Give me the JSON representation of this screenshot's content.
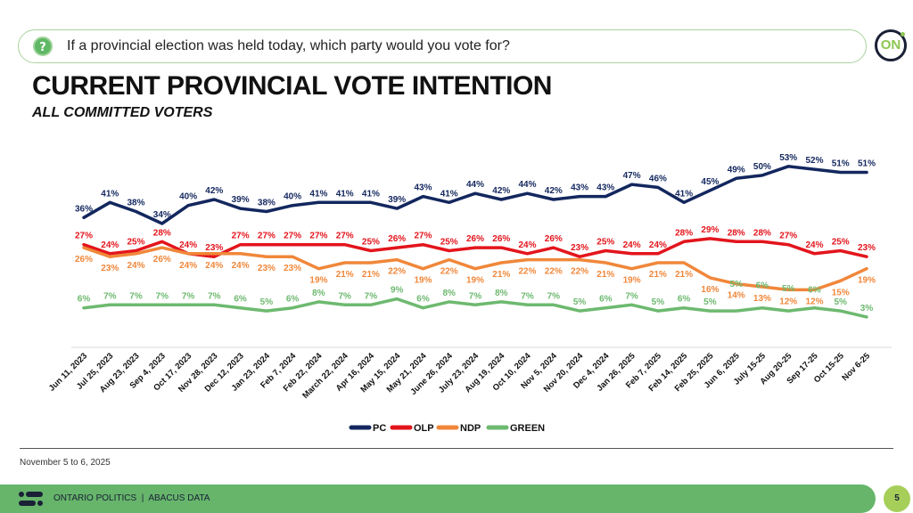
{
  "question": {
    "icon": "question-bubble-icon",
    "text": "If a provincial election was held today, which party would you vote for?"
  },
  "logo": {
    "text": "ON"
  },
  "header": {
    "title": "CURRENT PROVINCIAL VOTE INTENTION",
    "subtitle": "ALL COMMITTED VOTERS"
  },
  "footer": {
    "date_note": "November 5 to 6, 2025",
    "brand_text": "ONTARIO POLITICS  |  ABACUS DATA",
    "page_number": "5"
  },
  "chart_data": {
    "type": "line",
    "title": "CURRENT PROVINCIAL VOTE INTENTION",
    "subtitle": "ALL COMMITTED VOTERS",
    "xlabel": "",
    "ylabel": "",
    "ylim": [
      0,
      60
    ],
    "grid": false,
    "legend_position": "bottom-center",
    "value_suffix": "%",
    "categories": [
      "Jun 11, 2023",
      "Jul 25, 2023",
      "Aug 23, 2023",
      "Sep 4, 2023",
      "Oct 17, 2023",
      "Nov 28, 2023",
      "Dec 12, 2023",
      "Jan 23, 2024",
      "Feb 7, 2024",
      "Feb 22, 2024",
      "March 22, 2024",
      "Apr 16, 2024",
      "May 15, 2024",
      "May 21, 2024",
      "June 26, 2024",
      "July 23, 2024",
      "Aug 19, 2024",
      "Oct 10, 2024",
      "Nov 5, 2024",
      "Nov 20, 2024",
      "Dec 4, 2024",
      "Jan 26, 2025",
      "Feb 7, 2025",
      "Feb 14, 2025",
      "Feb 25, 2025",
      "Jun 6, 2025",
      "July 15-25",
      "Aug 20-25",
      "Sep 17-25",
      "Oct 15-25",
      "Nov 6-25"
    ],
    "series": [
      {
        "name": "PC",
        "color": "#13275e",
        "values": [
          36,
          41,
          38,
          34,
          40,
          42,
          39,
          38,
          40,
          41,
          41,
          41,
          39,
          43,
          41,
          44,
          42,
          44,
          42,
          43,
          43,
          47,
          46,
          41,
          45,
          49,
          50,
          53,
          52,
          51,
          51
        ]
      },
      {
        "name": "OLP",
        "color": "#e3151c",
        "values": [
          27,
          24,
          25,
          28,
          24,
          23,
          27,
          27,
          27,
          27,
          27,
          25,
          26,
          27,
          25,
          26,
          26,
          24,
          26,
          23,
          25,
          24,
          24,
          28,
          29,
          28,
          28,
          27,
          24,
          25,
          23
        ]
      },
      {
        "name": "NDP",
        "color": "#f0873a",
        "values": [
          26,
          23,
          24,
          26,
          24,
          24,
          24,
          23,
          23,
          19,
          21,
          21,
          22,
          19,
          22,
          19,
          21,
          22,
          22,
          22,
          21,
          19,
          21,
          21,
          16,
          14,
          13,
          12,
          12,
          15,
          19
        ]
      },
      {
        "name": "GREEN",
        "color": "#6db96f",
        "values": [
          6,
          7,
          7,
          7,
          7,
          7,
          6,
          5,
          6,
          8,
          7,
          7,
          9,
          6,
          8,
          7,
          8,
          7,
          7,
          5,
          6,
          7,
          5,
          6,
          5,
          5,
          6,
          5,
          6,
          5,
          3
        ]
      }
    ]
  }
}
